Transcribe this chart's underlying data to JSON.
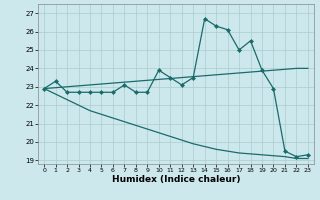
{
  "xlabel": "Humidex (Indice chaleur)",
  "background_color": "#cce8ec",
  "grid_color": "#aacccc",
  "line_color": "#1a6b6b",
  "xlim": [
    -0.5,
    23.5
  ],
  "ylim": [
    18.8,
    27.5
  ],
  "yticks": [
    19,
    20,
    21,
    22,
    23,
    24,
    25,
    26,
    27
  ],
  "xticks": [
    0,
    1,
    2,
    3,
    4,
    5,
    6,
    7,
    8,
    9,
    10,
    11,
    12,
    13,
    14,
    15,
    16,
    17,
    18,
    19,
    20,
    21,
    22,
    23
  ],
  "series": [
    {
      "x": [
        0,
        1,
        2,
        3,
        4,
        5,
        6,
        7,
        8,
        9,
        10,
        11,
        12,
        13,
        14,
        15,
        16,
        17,
        18,
        19,
        20,
        21,
        22,
        23
      ],
      "y": [
        22.9,
        23.3,
        22.7,
        22.7,
        22.7,
        22.7,
        22.7,
        23.1,
        22.7,
        22.7,
        23.9,
        23.5,
        23.1,
        23.5,
        26.7,
        26.3,
        26.1,
        25.0,
        25.5,
        23.9,
        22.9,
        19.5,
        19.2,
        19.3
      ],
      "marker": "D",
      "markersize": 2.0,
      "linewidth": 0.9
    },
    {
      "x": [
        0,
        1,
        2,
        3,
        4,
        5,
        6,
        7,
        8,
        9,
        10,
        11,
        12,
        13,
        14,
        15,
        16,
        17,
        18,
        19,
        20,
        21,
        22,
        23
      ],
      "y": [
        22.9,
        22.95,
        23.0,
        23.05,
        23.1,
        23.15,
        23.2,
        23.25,
        23.3,
        23.35,
        23.4,
        23.45,
        23.5,
        23.55,
        23.6,
        23.65,
        23.7,
        23.75,
        23.8,
        23.85,
        23.9,
        23.95,
        24.0,
        24.0
      ],
      "marker": null,
      "markersize": 0,
      "linewidth": 0.9
    },
    {
      "x": [
        0,
        1,
        2,
        3,
        4,
        5,
        6,
        7,
        8,
        9,
        10,
        11,
        12,
        13,
        14,
        15,
        16,
        17,
        18,
        19,
        20,
        21,
        22,
        23
      ],
      "y": [
        22.9,
        22.6,
        22.3,
        22.0,
        21.7,
        21.5,
        21.3,
        21.1,
        20.9,
        20.7,
        20.5,
        20.3,
        20.1,
        19.9,
        19.75,
        19.6,
        19.5,
        19.4,
        19.35,
        19.3,
        19.25,
        19.2,
        19.1,
        19.1
      ],
      "marker": null,
      "markersize": 0,
      "linewidth": 0.9
    }
  ]
}
